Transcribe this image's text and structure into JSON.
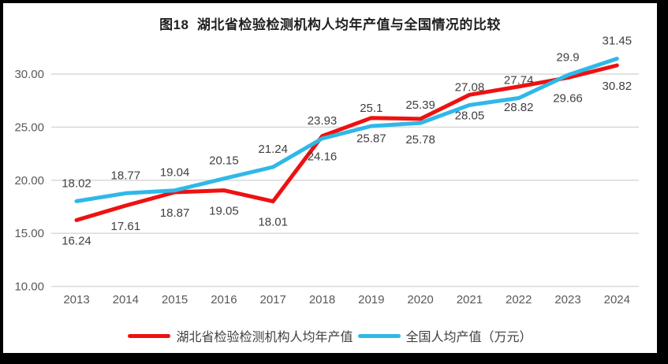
{
  "chart_data": {
    "type": "line",
    "title": "图18  湖北省检验检测机构人均年产值与全国情况的比较",
    "categories": [
      "2013",
      "2014",
      "2015",
      "2016",
      "2017",
      "2018",
      "2019",
      "2020",
      "2021",
      "2022",
      "2023",
      "2024"
    ],
    "series": [
      {
        "name": "湖北省检验检测机构人均年产值",
        "color": "#ee1111",
        "values": [
          16.24,
          17.61,
          18.87,
          19.05,
          18.01,
          24.16,
          25.87,
          25.78,
          28.05,
          28.82,
          29.66,
          30.82
        ],
        "label_position": "below"
      },
      {
        "name": "全国人均产值（万元）",
        "color": "#2fb8e8",
        "values": [
          18.02,
          18.77,
          19.04,
          20.15,
          21.24,
          23.93,
          25.1,
          25.39,
          27.08,
          27.74,
          29.9,
          31.45
        ],
        "label_position": "above"
      }
    ],
    "y_axis": {
      "ticks": [
        "10.00",
        "15.00",
        "20.00",
        "25.00",
        "30.00"
      ],
      "min": 10,
      "max": 30
    },
    "x_axis": {
      "label": ""
    },
    "grid": true,
    "gridline_color": "#d9d9d9",
    "axis_text_color": "#595959",
    "data_label_color": "#404040",
    "legend_position": "bottom",
    "data_labels": true,
    "line_width": 5
  }
}
